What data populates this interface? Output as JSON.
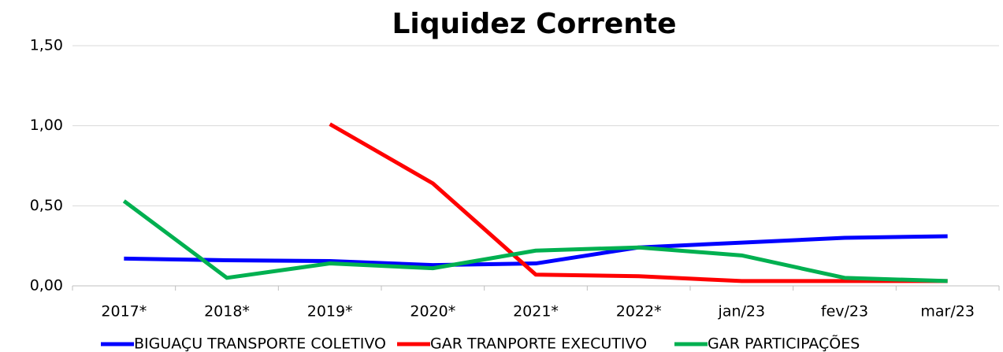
{
  "chart_data": {
    "type": "line",
    "title": "Liquidez Corrente",
    "categories": [
      "2017*",
      "2018*",
      "2019*",
      "2020*",
      "2021*",
      "2022*",
      "jan/23",
      "fev/23",
      "mar/23"
    ],
    "series": [
      {
        "name": "BIGUAÇU TRANSPORTE COLETIVO",
        "color": "#0000ff",
        "values": [
          0.17,
          0.16,
          0.155,
          0.13,
          0.14,
          0.24,
          0.27,
          0.3,
          0.31
        ]
      },
      {
        "name": "GAR TRANPORTE EXECUTIVO",
        "color": "#ff0000",
        "values": [
          null,
          null,
          1.01,
          0.64,
          0.07,
          0.06,
          0.03,
          0.03,
          0.03
        ]
      },
      {
        "name": "GAR PARTICIPAÇÕES",
        "color": "#00b050",
        "values": [
          0.53,
          0.05,
          0.14,
          0.11,
          0.22,
          0.24,
          0.19,
          0.05,
          0.03
        ]
      }
    ],
    "ylim": [
      0,
      1.5
    ],
    "yticks": [
      {
        "value": 0,
        "label": "0,00"
      },
      {
        "value": 0.5,
        "label": "0,50"
      },
      {
        "value": 1,
        "label": "1,00"
      },
      {
        "value": 1.5,
        "label": "1,50"
      }
    ],
    "grid": true,
    "legend": "bottom"
  }
}
